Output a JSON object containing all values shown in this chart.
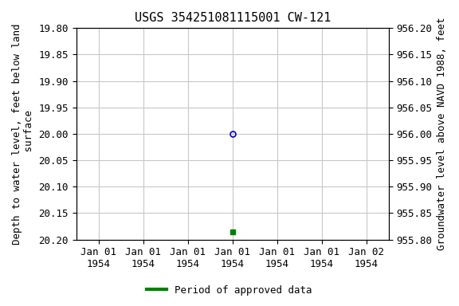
{
  "title": "USGS 354251081115001 CW-121",
  "ylabel_left": "Depth to water level, feet below land\n surface",
  "ylabel_right": "Groundwater level above NAVD 1988, feet",
  "ylim_left_top": 19.8,
  "ylim_left_bottom": 20.2,
  "ylim_right_bottom": 955.8,
  "ylim_right_top": 956.2,
  "yticks_left": [
    19.8,
    19.85,
    19.9,
    19.95,
    20.0,
    20.05,
    20.1,
    20.15,
    20.2
  ],
  "yticks_right": [
    955.8,
    955.85,
    955.9,
    955.95,
    956.0,
    956.05,
    956.1,
    956.15,
    956.2
  ],
  "xtick_labels": [
    "Jan 01\n1954",
    "Jan 01\n1954",
    "Jan 01\n1954",
    "Jan 01\n1954",
    "Jan 01\n1954",
    "Jan 01\n1954",
    "Jan 02\n1954"
  ],
  "xtick_positions": [
    0,
    1,
    2,
    3,
    4,
    5,
    6
  ],
  "xlim": [
    -0.5,
    6.5
  ],
  "data_point_open_x": 3,
  "data_point_open_y": 20.0,
  "data_point_open_color": "#0000cc",
  "data_point_open_marker": "o",
  "data_point_open_size": 5,
  "data_point_filled_x": 3,
  "data_point_filled_y": 20.185,
  "data_point_filled_color": "#008000",
  "data_point_filled_marker": "s",
  "data_point_filled_size": 4,
  "legend_label": "Period of approved data",
  "legend_color": "#008000",
  "background_color": "#ffffff",
  "grid_color": "#c8c8c8",
  "title_fontsize": 11,
  "axis_label_fontsize": 9,
  "tick_label_fontsize": 9,
  "font_family": "monospace"
}
